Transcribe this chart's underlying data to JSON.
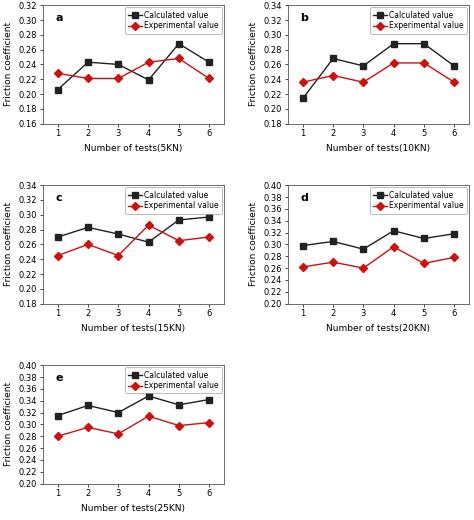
{
  "panels": [
    {
      "label": "a",
      "xlabel": "Number of tests(5KN)",
      "ylim": [
        0.16,
        0.32
      ],
      "yticks": [
        0.16,
        0.18,
        0.2,
        0.22,
        0.24,
        0.26,
        0.28,
        0.3,
        0.32
      ],
      "calc": [
        0.206,
        0.243,
        0.24,
        0.219,
        0.268,
        0.243
      ],
      "exp": [
        0.228,
        0.221,
        0.221,
        0.243,
        0.248,
        0.221
      ]
    },
    {
      "label": "b",
      "xlabel": "Number of tests(10KN)",
      "ylim": [
        0.18,
        0.34
      ],
      "yticks": [
        0.18,
        0.2,
        0.22,
        0.24,
        0.26,
        0.28,
        0.3,
        0.32,
        0.34
      ],
      "calc": [
        0.214,
        0.268,
        0.258,
        0.288,
        0.288,
        0.258
      ],
      "exp": [
        0.236,
        0.245,
        0.236,
        0.262,
        0.262,
        0.236
      ]
    },
    {
      "label": "c",
      "xlabel": "Number of tests(15KN)",
      "ylim": [
        0.18,
        0.34
      ],
      "yticks": [
        0.18,
        0.2,
        0.22,
        0.24,
        0.26,
        0.28,
        0.3,
        0.32,
        0.34
      ],
      "calc": [
        0.27,
        0.283,
        0.274,
        0.263,
        0.293,
        0.297
      ],
      "exp": [
        0.245,
        0.26,
        0.245,
        0.286,
        0.265,
        0.27
      ]
    },
    {
      "label": "d",
      "xlabel": "Number of tests(20KN)",
      "ylim": [
        0.2,
        0.4
      ],
      "yticks": [
        0.2,
        0.22,
        0.24,
        0.26,
        0.28,
        0.3,
        0.32,
        0.34,
        0.36,
        0.38,
        0.4
      ],
      "calc": [
        0.298,
        0.305,
        0.292,
        0.323,
        0.31,
        0.318
      ],
      "exp": [
        0.262,
        0.27,
        0.26,
        0.296,
        0.268,
        0.278
      ]
    },
    {
      "label": "e",
      "xlabel": "Number of tests(25KN)",
      "ylim": [
        0.2,
        0.4
      ],
      "yticks": [
        0.2,
        0.22,
        0.24,
        0.26,
        0.28,
        0.3,
        0.32,
        0.34,
        0.36,
        0.38,
        0.4
      ],
      "calc": [
        0.315,
        0.332,
        0.32,
        0.348,
        0.333,
        0.342
      ],
      "exp": [
        0.28,
        0.295,
        0.284,
        0.314,
        0.298,
        0.303
      ]
    }
  ],
  "x": [
    1,
    2,
    3,
    4,
    5,
    6
  ],
  "calc_color": "#222222",
  "exp_color": "#cc1111",
  "legend_calc": "Calculated value",
  "legend_exp": "Experimental value",
  "ylabel": "Friction coefficient",
  "marker_calc": "s",
  "marker_exp": "D",
  "linewidth": 1.0,
  "markersize": 4,
  "fontsize_label": 6.5,
  "fontsize_tick": 6,
  "fontsize_legend": 5.5,
  "fontsize_panel_label": 8
}
